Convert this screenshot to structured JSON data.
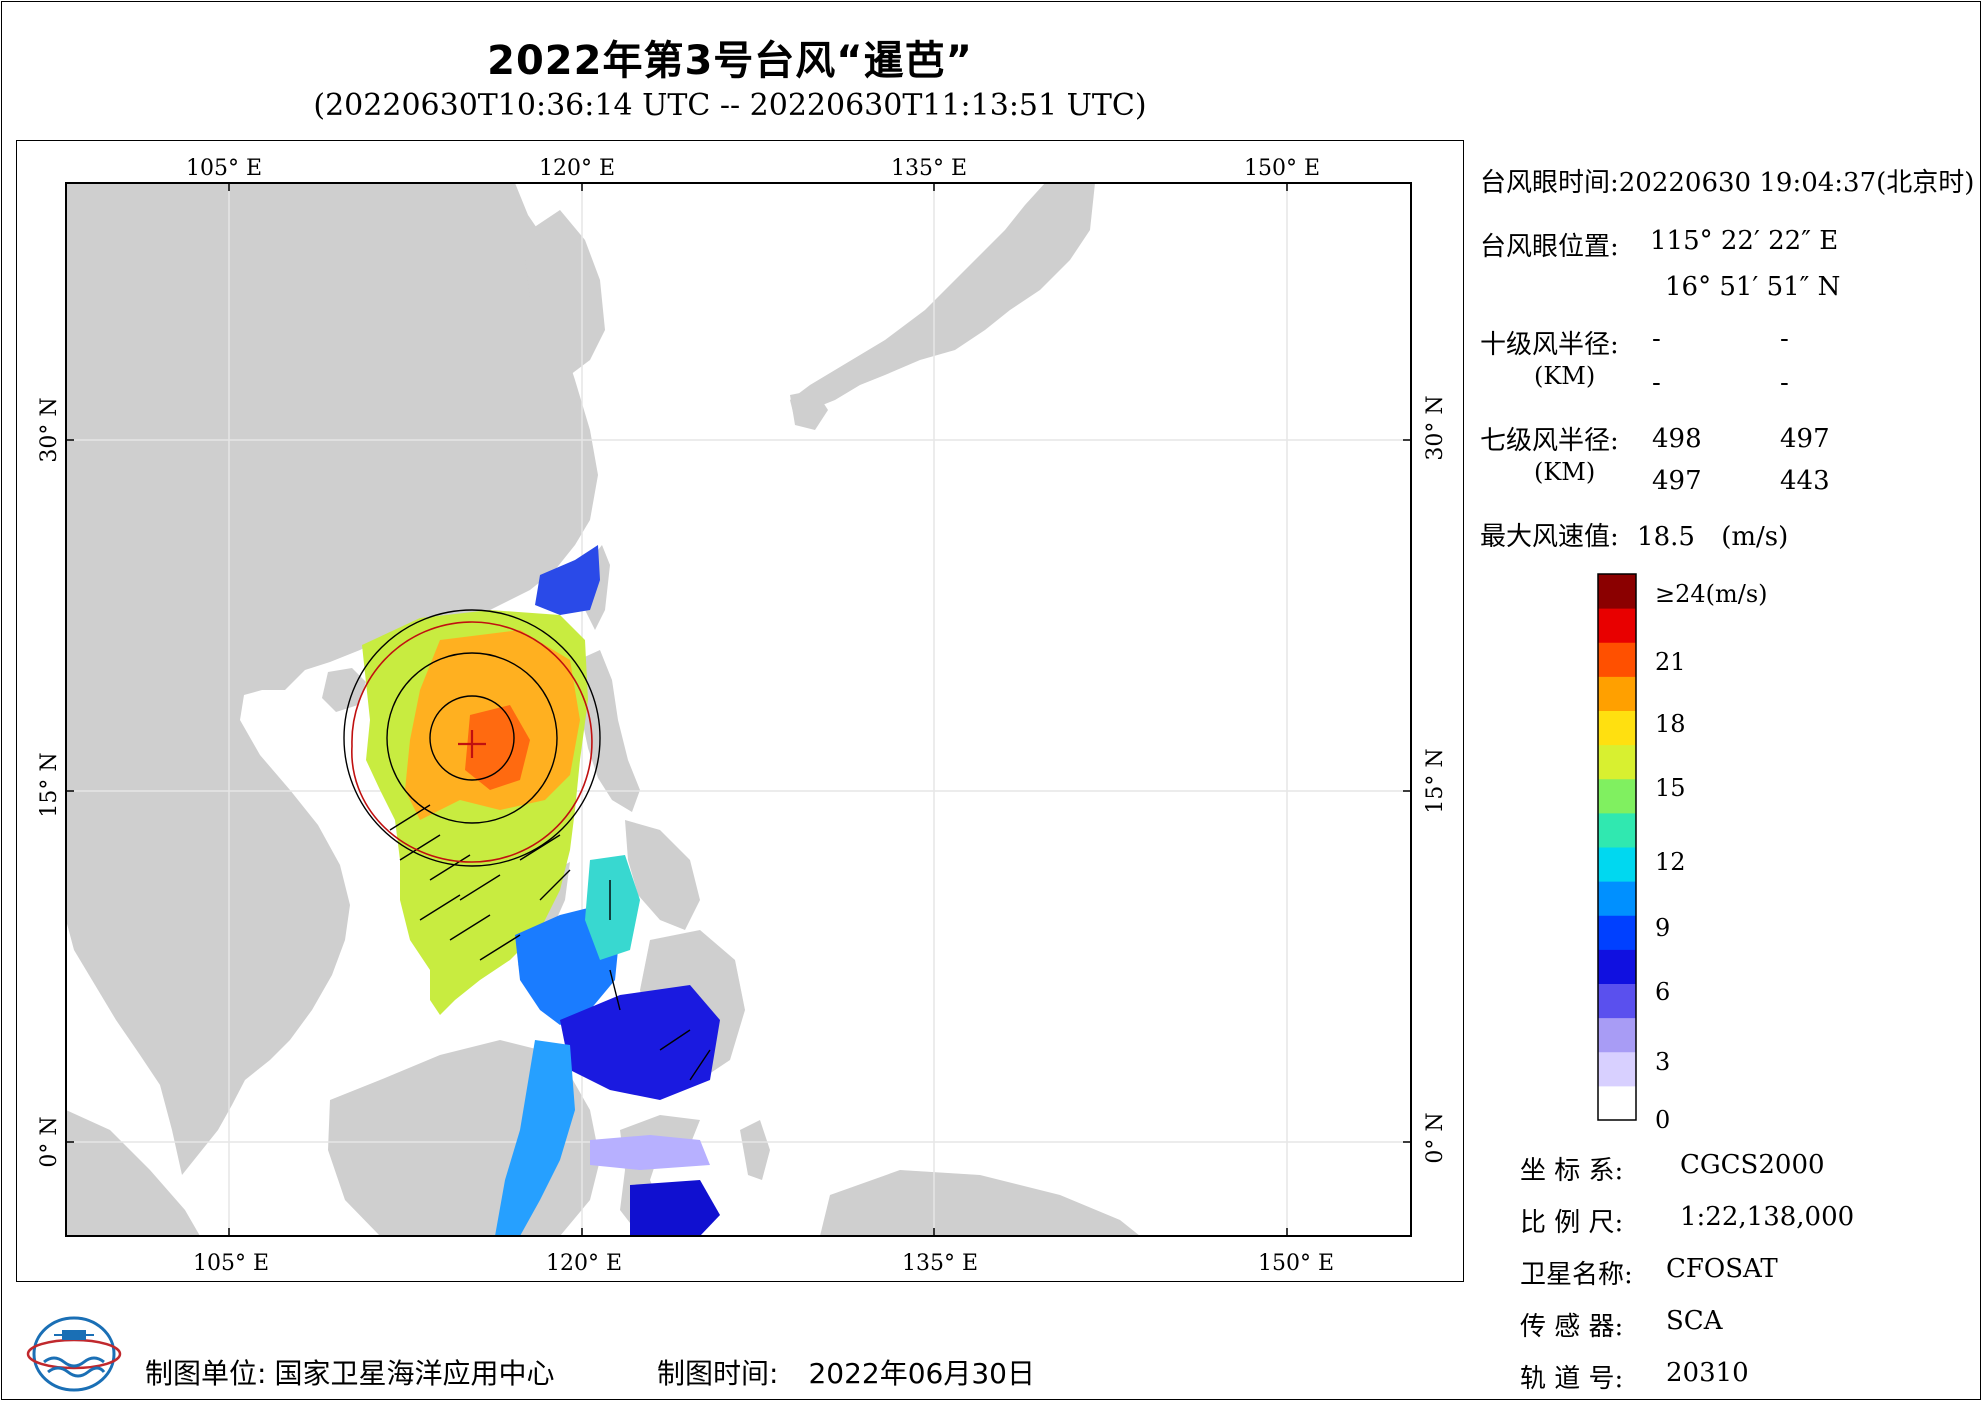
{
  "title": "2022年第3号台风“暹芭”",
  "subtitle": "(20220630T10:36:14 UTC -- 20220630T11:13:51 UTC)",
  "map": {
    "top_lon_labels": [
      "105° E",
      "120° E",
      "135° E",
      "150° E"
    ],
    "bottom_lon_labels": [
      "105° E",
      "120° E",
      "135° E",
      "150° E"
    ],
    "left_lat_labels": [
      "30° N",
      "15° N",
      "0° N"
    ],
    "right_lat_labels": [
      "30° N",
      "15° N",
      "0° N"
    ],
    "lon_range": [
      98,
      155
    ],
    "lat_range": [
      -4,
      41
    ],
    "graticule_lon": [
      105,
      120,
      135,
      150
    ],
    "graticule_lat": [
      0,
      15,
      30
    ],
    "typhoon_center": {
      "lon": 115.37,
      "lat": 16.86
    }
  },
  "info": {
    "eye_time_label": "台风眼时间:",
    "eye_time_value": "20220630 19:04:37(北京时)",
    "eye_pos_label": "台风眼位置:",
    "eye_lon": "115° 22′ 22″ E",
    "eye_lat": "16° 51′ 51″ N",
    "r10_label": "十级风半径:",
    "r10_unit": "(KM)",
    "r10_values": [
      "-",
      "-",
      "-",
      "-"
    ],
    "r7_label": "七级风半径:",
    "r7_unit": "(KM)",
    "r7_values": [
      "498",
      "497",
      "497",
      "443"
    ],
    "max_wind_label": "最大风速值:",
    "max_wind_value": "18.5",
    "max_wind_unit": "(m/s)"
  },
  "colorbar": {
    "ticks": [
      "≥24(m/s)",
      "21",
      "18",
      "15",
      "12",
      "9",
      "6",
      "3",
      "0"
    ],
    "colors": [
      "#ffffff",
      "#d8d0ff",
      "#a89cf5",
      "#5a50ee",
      "#1010e0",
      "#0040ff",
      "#0090ff",
      "#00d8f0",
      "#30e8b0",
      "#80f060",
      "#d8f030",
      "#ffe010",
      "#ffa000",
      "#ff5000",
      "#e80000",
      "#8b0000"
    ]
  },
  "meta": {
    "coord_label": "坐 标 系:",
    "coord_value": "CGCS2000",
    "scale_label": "比 例 尺:",
    "scale_value": "1:22,138,000",
    "satellite_label": "卫星名称:",
    "satellite_value": "CFOSAT",
    "sensor_label": "传 感 器:",
    "sensor_value": "SCA",
    "orbit_label": "轨 道 号:",
    "orbit_value": "20310"
  },
  "footer": {
    "unit_label": "制图单位:",
    "unit_value": "国家卫星海洋应用中心",
    "time_label": "制图时间:",
    "time_value": "2022年06月30日"
  }
}
